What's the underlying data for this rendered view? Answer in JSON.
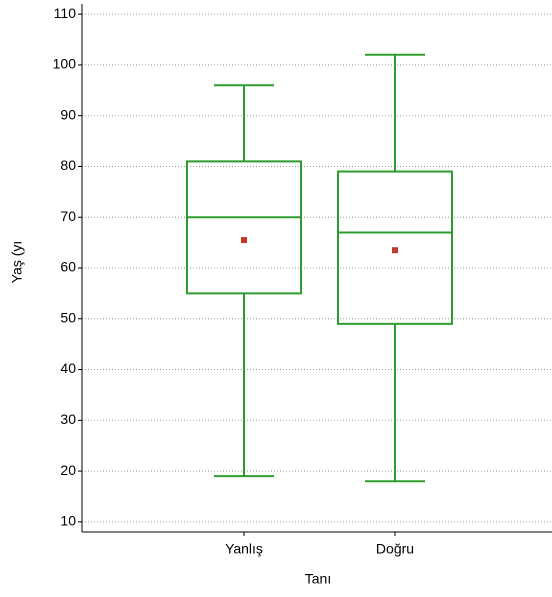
{
  "chart_data": {
    "type": "box",
    "x_label": "Tanı",
    "y_label": "Yaş (yı",
    "categories": [
      "Yanlış",
      "Doğru"
    ],
    "boxes": [
      {
        "min": 19,
        "q1": 55,
        "median": 70,
        "q3": 81,
        "max": 96,
        "mean": 65.5
      },
      {
        "min": 18,
        "q1": 49,
        "median": 67,
        "q3": 79,
        "max": 102,
        "mean": 63.5
      }
    ],
    "color": "#2e9b2e",
    "mean_color": "#c0392b",
    "ylim": [
      8,
      112
    ],
    "yticks": [
      10,
      20,
      30,
      40,
      50,
      60,
      70,
      80,
      90,
      100,
      110
    ],
    "grid": true
  }
}
